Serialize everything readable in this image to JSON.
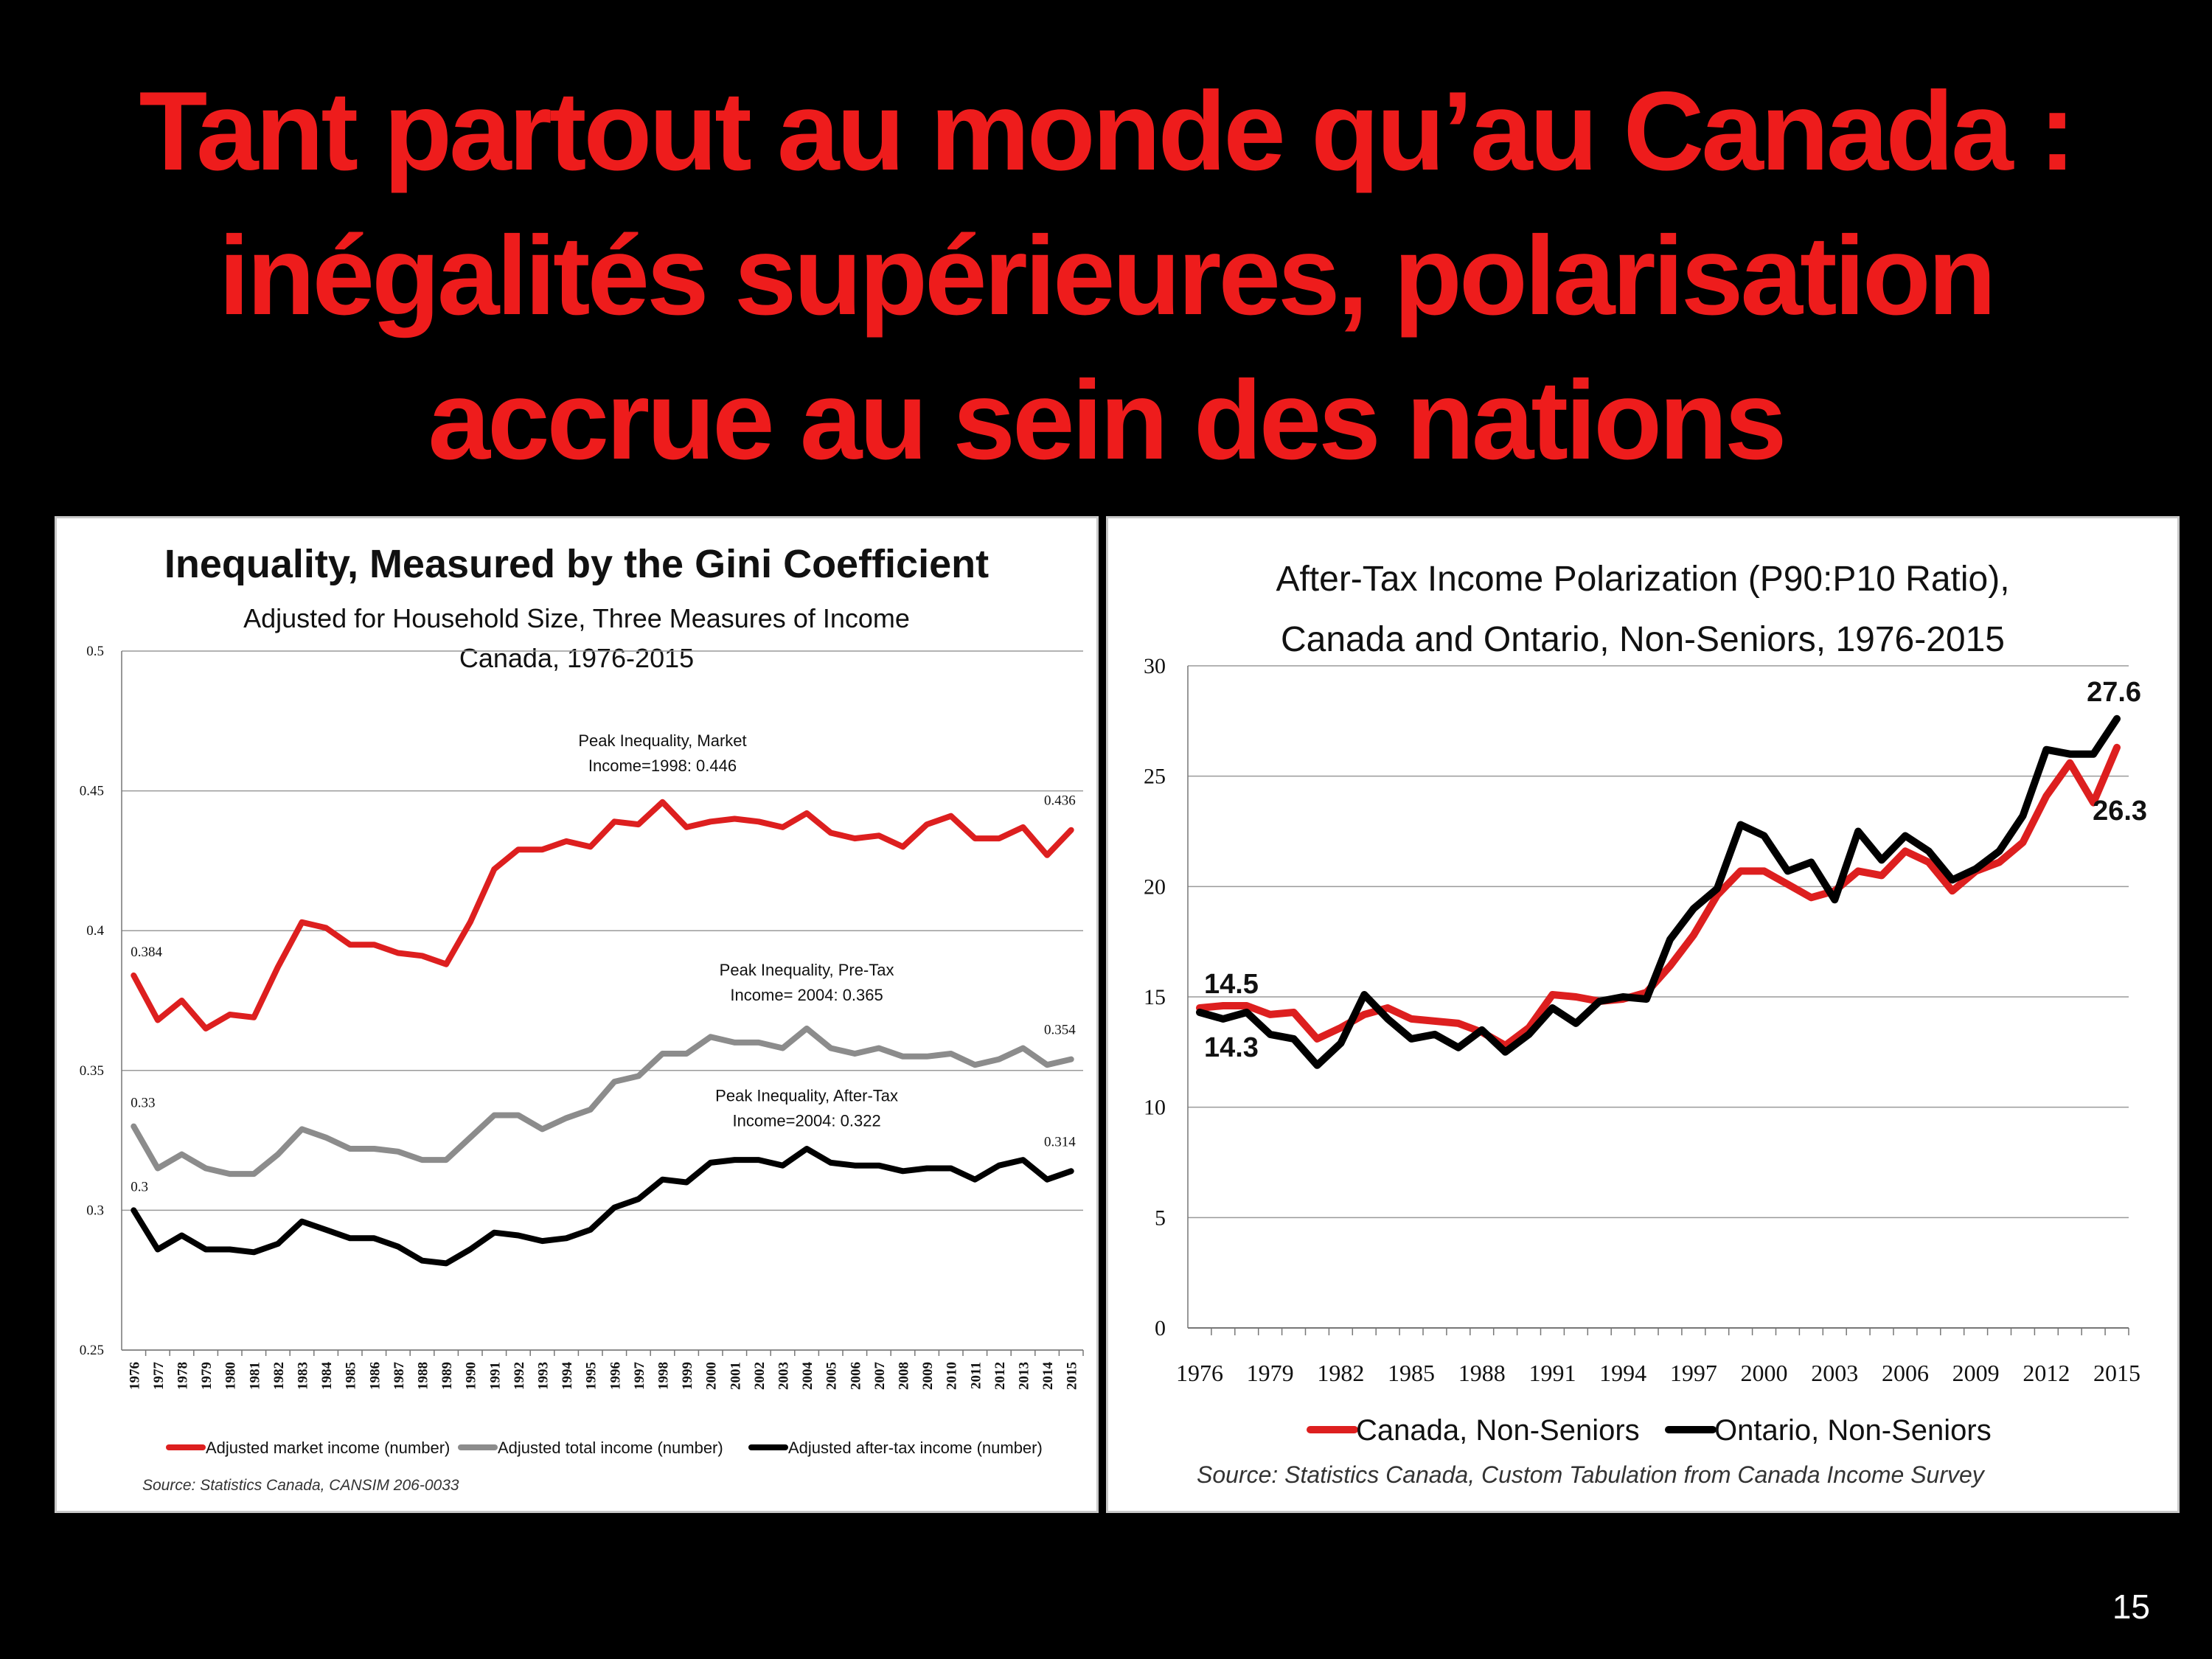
{
  "slide": {
    "title_lines": [
      "Tant partout au monde qu’au Canada :",
      "inégalités supérieures, polarisation",
      "accrue au sein des nations"
    ],
    "page_number": "15"
  },
  "colors": {
    "red": "#dd1f1f",
    "gray": "#8c8c8c",
    "black": "#000000",
    "title": "#ee1c1c"
  },
  "chart_data": [
    {
      "type": "line",
      "title": "Inequality, Measured by the Gini Coefficient",
      "subtitle": "Adjusted for Household Size, Three Measures of Income",
      "subtitle2": "Canada, 1976-2015",
      "xlabel": "",
      "ylabel": "",
      "ylim": [
        0.25,
        0.5
      ],
      "yticks": [
        "0.25",
        "0.3",
        "0.35",
        "0.4",
        "0.45",
        "0.5"
      ],
      "x": [
        1976,
        1977,
        1978,
        1979,
        1980,
        1981,
        1982,
        1983,
        1984,
        1985,
        1986,
        1987,
        1988,
        1989,
        1990,
        1991,
        1992,
        1993,
        1994,
        1995,
        1996,
        1997,
        1998,
        1999,
        2000,
        2001,
        2002,
        2003,
        2004,
        2005,
        2006,
        2007,
        2008,
        2009,
        2010,
        2011,
        2012,
        2013,
        2014,
        2015
      ],
      "grid": true,
      "legend_position": "bottom",
      "series": [
        {
          "name": "Adjusted market income (number)",
          "color": "#dd1f1f",
          "values": [
            0.384,
            0.368,
            0.375,
            0.365,
            0.37,
            0.369,
            0.387,
            0.403,
            0.401,
            0.395,
            0.395,
            0.392,
            0.391,
            0.388,
            0.403,
            0.422,
            0.429,
            0.429,
            0.432,
            0.43,
            0.439,
            0.438,
            0.446,
            0.437,
            0.439,
            0.44,
            0.439,
            0.437,
            0.442,
            0.435,
            0.433,
            0.434,
            0.43,
            0.438,
            0.441,
            0.433,
            0.433,
            0.437,
            0.427,
            0.436
          ]
        },
        {
          "name": "Adjusted total income (number)",
          "color": "#8c8c8c",
          "values": [
            0.33,
            0.315,
            0.32,
            0.315,
            0.313,
            0.313,
            0.32,
            0.329,
            0.326,
            0.322,
            0.322,
            0.321,
            0.318,
            0.318,
            0.326,
            0.334,
            0.334,
            0.329,
            0.333,
            0.336,
            0.346,
            0.348,
            0.356,
            0.356,
            0.362,
            0.36,
            0.36,
            0.358,
            0.365,
            0.358,
            0.356,
            0.358,
            0.355,
            0.355,
            0.356,
            0.352,
            0.354,
            0.358,
            0.352,
            0.354
          ]
        },
        {
          "name": "Adjusted after-tax income (number)",
          "color": "#000000",
          "values": [
            0.3,
            0.286,
            0.291,
            0.286,
            0.286,
            0.285,
            0.288,
            0.296,
            0.293,
            0.29,
            0.29,
            0.287,
            0.282,
            0.281,
            0.286,
            0.292,
            0.291,
            0.289,
            0.29,
            0.293,
            0.301,
            0.304,
            0.311,
            0.31,
            0.317,
            0.318,
            0.318,
            0.316,
            0.322,
            0.317,
            0.316,
            0.316,
            0.314,
            0.315,
            0.315,
            0.311,
            0.316,
            0.318,
            0.311,
            0.314
          ]
        }
      ],
      "annotations": [
        {
          "lines": [
            "Peak Inequality, Market",
            "Income=1998: 0.446"
          ],
          "x": 1998,
          "y": 0.466
        },
        {
          "lines": [
            "Peak Inequality, Pre-Tax",
            "Income= 2004: 0.365"
          ],
          "x": 2004,
          "y": 0.384
        },
        {
          "lines": [
            "Peak Inequality, After-Tax",
            "Income=2004: 0.322"
          ],
          "x": 2004,
          "y": 0.339
        }
      ],
      "data_labels": [
        {
          "text": "0.384",
          "x": 1976,
          "y": 0.384
        },
        {
          "text": "0.33",
          "x": 1976,
          "y": 0.33
        },
        {
          "text": "0.3",
          "x": 1976,
          "y": 0.3
        },
        {
          "text": "0.436",
          "x": 2015,
          "y": 0.436
        },
        {
          "text": "0.354",
          "x": 2015,
          "y": 0.354
        },
        {
          "text": "0.314",
          "x": 2015,
          "y": 0.314
        }
      ],
      "source": "Source: Statistics Canada,  CANSIM 206-0033"
    },
    {
      "type": "line",
      "title": "After-Tax Income Polarization (P90:P10 Ratio),",
      "subtitle": "Canada and Ontario, Non-Seniors, 1976-2015",
      "xlabel": "",
      "ylabel": "",
      "ylim": [
        0,
        30
      ],
      "yticks": [
        "0",
        "5",
        "10",
        "15",
        "20",
        "25",
        "30"
      ],
      "xticks": [
        "1976",
        "1979",
        "1982",
        "1985",
        "1988",
        "1991",
        "1994",
        "1997",
        "2000",
        "2003",
        "2006",
        "2009",
        "2012",
        "2015"
      ],
      "x": [
        1976,
        1977,
        1978,
        1979,
        1980,
        1981,
        1982,
        1983,
        1984,
        1985,
        1986,
        1987,
        1988,
        1989,
        1990,
        1991,
        1992,
        1993,
        1994,
        1995,
        1996,
        1997,
        1998,
        1999,
        2000,
        2001,
        2002,
        2003,
        2004,
        2005,
        2006,
        2007,
        2008,
        2009,
        2010,
        2011,
        2012,
        2013,
        2014,
        2015
      ],
      "grid": true,
      "legend_position": "bottom",
      "series": [
        {
          "name": "Canada, Non-Seniors",
          "color": "#dd1f1f",
          "values": [
            14.5,
            14.6,
            14.6,
            14.2,
            14.3,
            13.1,
            13.6,
            14.2,
            14.5,
            14.0,
            13.9,
            13.8,
            13.4,
            12.8,
            13.6,
            15.1,
            15.0,
            14.8,
            14.9,
            15.2,
            16.4,
            17.8,
            19.6,
            20.7,
            20.7,
            20.1,
            19.5,
            19.8,
            20.7,
            20.5,
            21.6,
            21.1,
            19.8,
            20.7,
            21.1,
            22.0,
            24.1,
            25.6,
            23.8,
            26.3
          ]
        },
        {
          "name": "Ontario, Non-Seniors",
          "color": "#000000",
          "values": [
            14.3,
            14.0,
            14.3,
            13.3,
            13.1,
            11.9,
            12.9,
            15.1,
            14.0,
            13.1,
            13.3,
            12.7,
            13.5,
            12.5,
            13.3,
            14.5,
            13.8,
            14.8,
            15.0,
            14.9,
            17.6,
            19.0,
            19.9,
            22.8,
            22.3,
            20.7,
            21.1,
            19.4,
            22.5,
            21.2,
            22.3,
            21.6,
            20.3,
            20.8,
            21.6,
            23.2,
            26.2,
            26.0,
            26.0,
            27.6
          ]
        }
      ],
      "data_labels": [
        {
          "text": "14.5",
          "x": 1976,
          "y": 14.5,
          "pos": "above"
        },
        {
          "text": "14.3",
          "x": 1976,
          "y": 14.3,
          "pos": "below"
        },
        {
          "text": "27.6",
          "x": 2015,
          "y": 27.6,
          "pos": "above"
        },
        {
          "text": "26.3",
          "x": 2015,
          "y": 26.3,
          "pos": "right"
        }
      ],
      "source": "Source: Statistics Canada,  Custom Tabulation from Canada Income Survey"
    }
  ]
}
